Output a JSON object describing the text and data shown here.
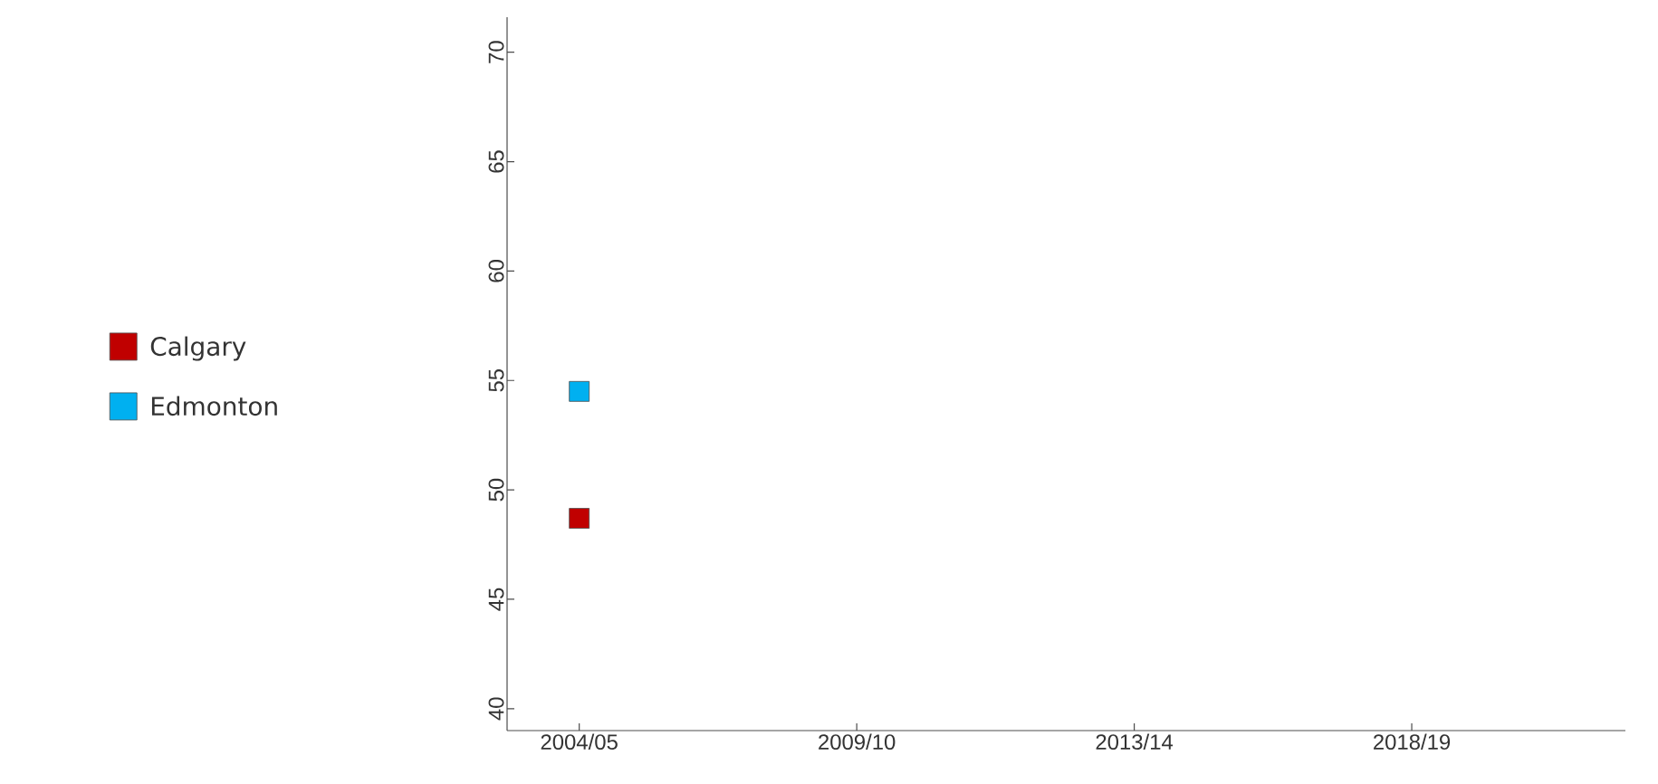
{
  "chart_data": {
    "type": "scatter",
    "categories": [
      "2004/05",
      "2009/10",
      "2013/14",
      "2018/19"
    ],
    "series": [
      {
        "name": "Calgary",
        "color": "#c00000",
        "values": [
          48.7,
          null,
          null,
          null
        ]
      },
      {
        "name": "Edmonton",
        "color": "#00b0f0",
        "values": [
          54.5,
          null,
          null,
          null
        ]
      }
    ],
    "ylim": [
      39,
      71.6
    ],
    "yticks": [
      40,
      45,
      50,
      55,
      60,
      65,
      70
    ],
    "marker": "square",
    "legend": "left"
  }
}
